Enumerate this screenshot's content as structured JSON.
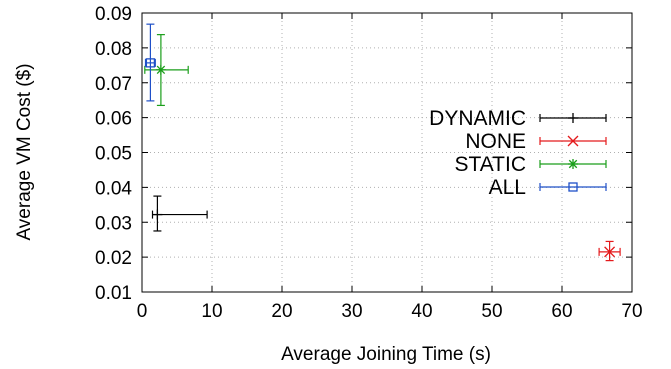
{
  "chart_data": {
    "type": "scatter",
    "title": "",
    "xlabel": "Average Joining Time (s)",
    "ylabel": "Average VM Cost ($)",
    "xlim": [
      0,
      70
    ],
    "ylim": [
      0.01,
      0.09
    ],
    "xticks": [
      0,
      10,
      20,
      30,
      40,
      50,
      60,
      70
    ],
    "yticks": [
      0.01,
      0.02,
      0.03,
      0.04,
      0.05,
      0.06,
      0.07,
      0.08,
      0.09
    ],
    "xtick_labels": [
      "0",
      "10",
      "20",
      "30",
      "40",
      "50",
      "60",
      "70"
    ],
    "ytick_labels": [
      "0.01",
      "0.02",
      "0.03",
      "0.04",
      "0.05",
      "0.06",
      "0.07",
      "0.08",
      "0.09"
    ],
    "grid": true,
    "legend_position": "right",
    "series": [
      {
        "name": "DYNAMIC",
        "color": "#000000",
        "marker": "plus",
        "x": 2.2,
        "y": 0.0322,
        "xerr": [
          1.5,
          9.3
        ],
        "yerr": [
          0.0275,
          0.0375
        ]
      },
      {
        "name": "NONE",
        "color": "#e41a1c",
        "marker": "cross",
        "x": 66.8,
        "y": 0.0215,
        "xerr": [
          65.3,
          68.3
        ],
        "yerr": [
          0.019,
          0.0245
        ]
      },
      {
        "name": "STATIC",
        "color": "#1a9e1a",
        "marker": "star",
        "x": 2.7,
        "y": 0.0737,
        "xerr": [
          0.4,
          6.6
        ],
        "yerr": [
          0.0635,
          0.0838
        ]
      },
      {
        "name": "ALL",
        "color": "#1f50c8",
        "marker": "square",
        "x": 1.2,
        "y": 0.0757,
        "xerr": [
          0.5,
          1.9
        ],
        "yerr": [
          0.0648,
          0.0868
        ]
      }
    ]
  }
}
